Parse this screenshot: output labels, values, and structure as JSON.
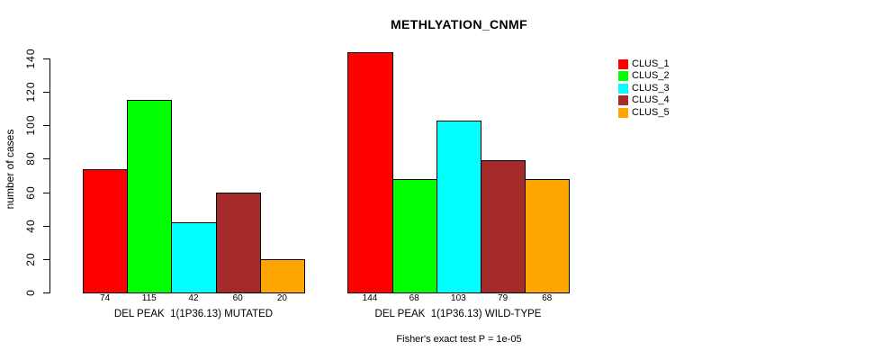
{
  "title": "METHLYATION_CNMF",
  "footer": "Fisher's exact test P = 1e-05",
  "chart_data": {
    "type": "bar",
    "title": "METHLYATION_CNMF",
    "xlabel": "",
    "ylabel": "number of cases",
    "ylim": [
      0,
      144
    ],
    "yticks": [
      0,
      20,
      40,
      60,
      80,
      100,
      120,
      140
    ],
    "grid": false,
    "legend_position": "right",
    "bar_value_labels": true,
    "categories": [
      "DEL PEAK  1(1P36.13) MUTATED",
      "DEL PEAK  1(1P36.13) WILD-TYPE"
    ],
    "series": [
      {
        "name": "CLUS_1",
        "color": "#FF0000",
        "values": [
          74,
          144
        ]
      },
      {
        "name": "CLUS_2",
        "color": "#00FF00",
        "values": [
          115,
          68
        ]
      },
      {
        "name": "CLUS_3",
        "color": "#00FFFF",
        "values": [
          42,
          103
        ]
      },
      {
        "name": "CLUS_4",
        "color": "#A52A2A",
        "values": [
          60,
          79
        ]
      },
      {
        "name": "CLUS_5",
        "color": "#FFA500",
        "values": [
          20,
          68
        ]
      }
    ],
    "annotation": "Fisher's exact test P = 1e-05"
  }
}
